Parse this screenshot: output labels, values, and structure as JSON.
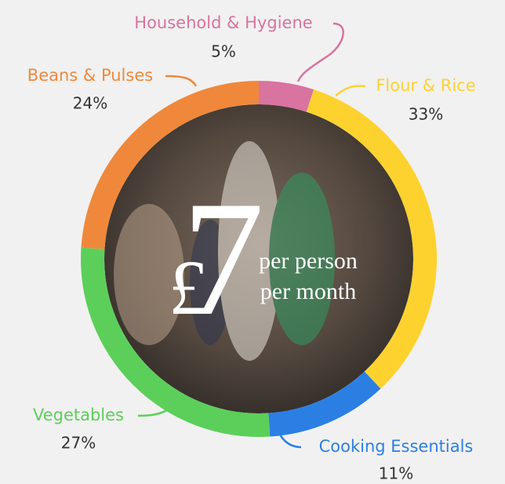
{
  "chart_data": {
    "type": "donut",
    "categories": [
      "Household & Hygiene",
      "Flour & Rice",
      "Cooking Essentials",
      "Vegetables",
      "Beans & Pulses"
    ],
    "values": [
      5,
      33,
      11,
      27,
      24
    ],
    "value_labels": [
      "5%",
      "33%",
      "11%",
      "27%",
      "24%"
    ],
    "colors": [
      "#d9739f",
      "#fdd22e",
      "#2b7fe3",
      "#5ccf5a",
      "#f0883b"
    ],
    "center_label": {
      "currency": "£",
      "amount": "7",
      "caption_lines": [
        "per person",
        "per month"
      ]
    }
  }
}
